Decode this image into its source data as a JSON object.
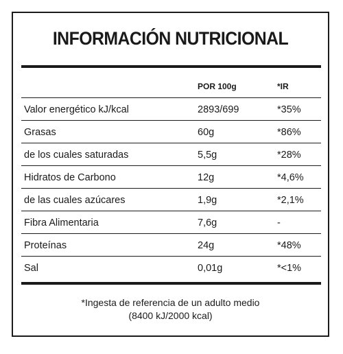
{
  "title": "INFORMACIÓN NUTRICIONAL",
  "header": {
    "col_per100": "POR 100g",
    "col_ir": "*IR"
  },
  "rows": [
    {
      "label": "Valor energético kJ/kcal",
      "per100": "2893/699",
      "ir": "*35%"
    },
    {
      "label": "Grasas",
      "per100": "60g",
      "ir": "*86%"
    },
    {
      "label": "de los cuales saturadas",
      "per100": "5,5g",
      "ir": "*28%"
    },
    {
      "label": "Hidratos de Carbono",
      "per100": "12g",
      "ir": "*4,6%"
    },
    {
      "label": "de las cuales azúcares",
      "per100": "1,9g",
      "ir": "*2,1%"
    },
    {
      "label": "Fibra Alimentaria",
      "per100": "7,6g",
      "ir": "-"
    },
    {
      "label": "Proteínas",
      "per100": "24g",
      "ir": "*48%"
    },
    {
      "label": "Sal",
      "per100": "0,01g",
      "ir": "*<1%"
    }
  ],
  "footnote": {
    "line1": "*Ingesta de referencia de un adulto medio",
    "line2": "(8400 kJ/2000 kcal)"
  }
}
